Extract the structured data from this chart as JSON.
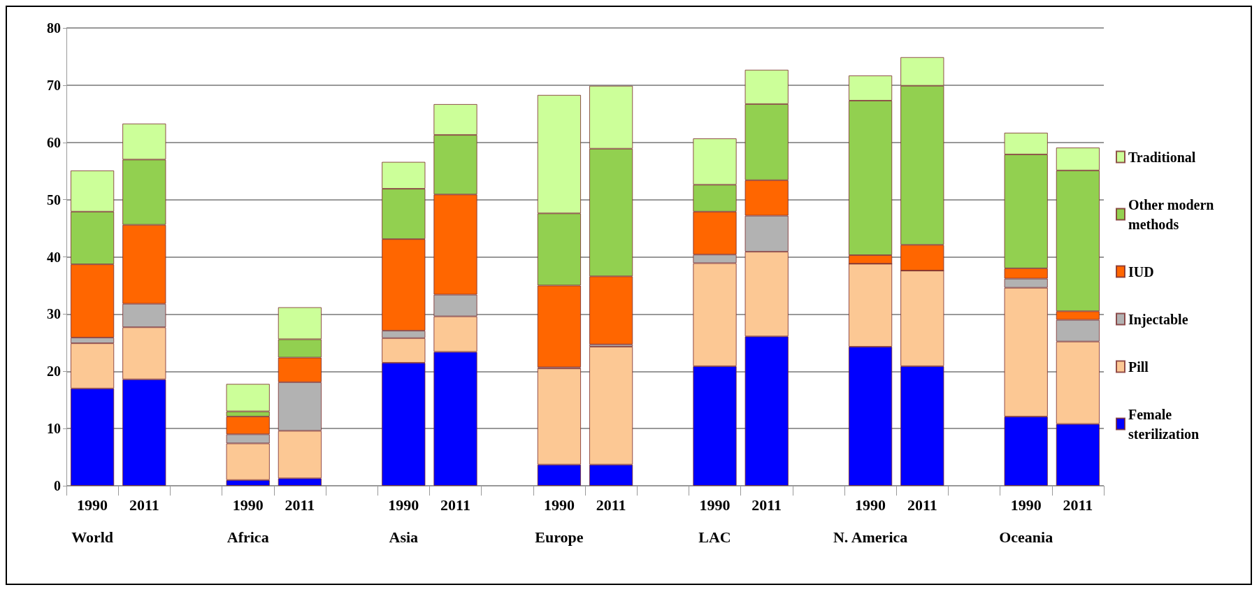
{
  "chart_data": {
    "type": "bar",
    "stacked": true,
    "categories": [
      "1990",
      "2011",
      null,
      "1990",
      "2011",
      null,
      "1990",
      "2011",
      null,
      "1990",
      "2011",
      null,
      "1990",
      "2011",
      null,
      "1990",
      "2011",
      null,
      "1990",
      "2011"
    ],
    "annotations": [
      "World",
      "Africa",
      "Asia",
      "Europe",
      "LAC",
      "N. America",
      "Oceania"
    ],
    "ylim": [
      0,
      80
    ],
    "yticks": [
      0,
      10,
      20,
      30,
      40,
      50,
      60,
      70,
      80
    ],
    "grid": "y",
    "legend": "right",
    "series": [
      {
        "name": "Female sterilization",
        "color": "#0000ff",
        "values": [
          17.0,
          18.6,
          null,
          1.0,
          1.3,
          null,
          21.5,
          23.4,
          null,
          3.7,
          3.7,
          null,
          20.9,
          26.1,
          null,
          24.3,
          20.9,
          null,
          12.1,
          10.8
        ]
      },
      {
        "name": "Pill",
        "color": "#fcc894",
        "values": [
          7.9,
          9.1,
          null,
          6.4,
          8.3,
          null,
          4.3,
          6.2,
          null,
          16.8,
          20.6,
          null,
          18.0,
          14.8,
          null,
          14.5,
          16.7,
          null,
          22.5,
          14.4
        ]
      },
      {
        "name": "Injectable",
        "color": "#b2b2b2",
        "values": [
          1.0,
          4.1,
          null,
          1.6,
          8.5,
          null,
          1.3,
          3.8,
          null,
          0.2,
          0.4,
          null,
          1.5,
          6.3,
          null,
          0,
          0,
          null,
          1.6,
          3.8
        ]
      },
      {
        "name": "IUD",
        "color": "#ff6600",
        "values": [
          12.8,
          13.8,
          null,
          3.1,
          4.3,
          null,
          16.0,
          17.5,
          null,
          14.3,
          11.9,
          null,
          7.5,
          6.2,
          null,
          1.5,
          4.5,
          null,
          1.8,
          1.5
        ]
      },
      {
        "name": "Other modern methods",
        "color": "#92d050",
        "values": [
          9.2,
          11.4,
          null,
          0.9,
          3.2,
          null,
          8.8,
          10.4,
          null,
          12.6,
          22.3,
          null,
          4.7,
          13.3,
          null,
          27.0,
          27.8,
          null,
          19.9,
          24.6
        ]
      },
      {
        "name": "Traditional",
        "color": "#ccff99",
        "values": [
          7.2,
          6.3,
          null,
          4.8,
          5.6,
          null,
          4.7,
          5.4,
          null,
          20.7,
          11.0,
          null,
          8.1,
          6.0,
          null,
          4.4,
          5.0,
          null,
          3.8,
          4.0
        ]
      }
    ]
  }
}
